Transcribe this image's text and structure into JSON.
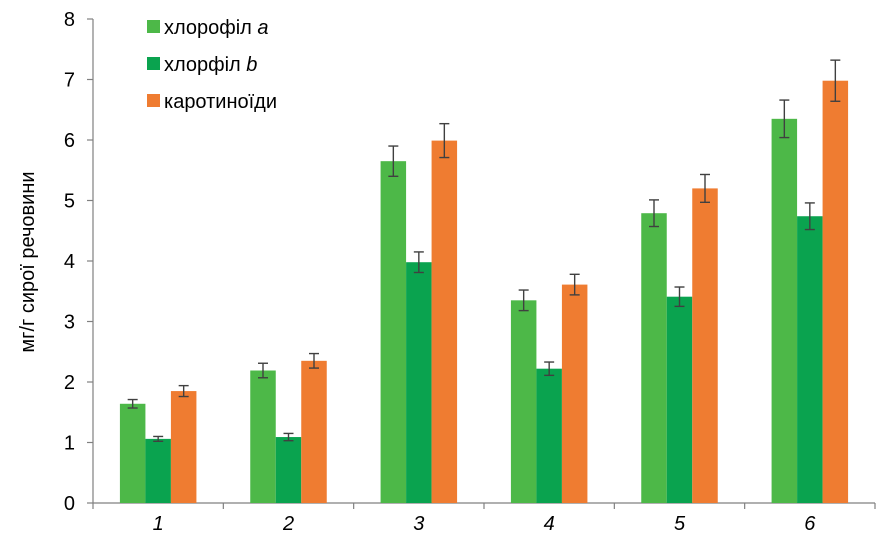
{
  "chart_data": {
    "type": "bar",
    "categories": [
      "1",
      "2",
      "3",
      "4",
      "5",
      "6"
    ],
    "series": [
      {
        "name": "хлорофіл ",
        "name_italic": "a",
        "color": "#4db848",
        "values": [
          1.64,
          2.19,
          5.65,
          3.35,
          4.79,
          6.35
        ],
        "errors": [
          0.07,
          0.12,
          0.25,
          0.17,
          0.22,
          0.31
        ]
      },
      {
        "name": "хлорфіл  ",
        "name_italic": "b",
        "color": "#0aa34f",
        "values": [
          1.06,
          1.09,
          3.98,
          2.22,
          3.41,
          4.74
        ],
        "errors": [
          0.04,
          0.06,
          0.17,
          0.11,
          0.16,
          0.22
        ]
      },
      {
        "name": "каротиноїди",
        "name_italic": "",
        "color": "#ef7c31",
        "values": [
          1.85,
          2.35,
          5.99,
          3.61,
          5.2,
          6.98
        ],
        "errors": [
          0.09,
          0.12,
          0.28,
          0.17,
          0.23,
          0.34
        ]
      }
    ],
    "yticks": [
      0,
      1,
      2,
      3,
      4,
      5,
      6,
      7,
      8
    ],
    "ylim": [
      0,
      8
    ],
    "ylabel": "мг/г сирої речовини",
    "xlabel": "",
    "title": "",
    "grid": false,
    "legend_position": "top-left"
  }
}
